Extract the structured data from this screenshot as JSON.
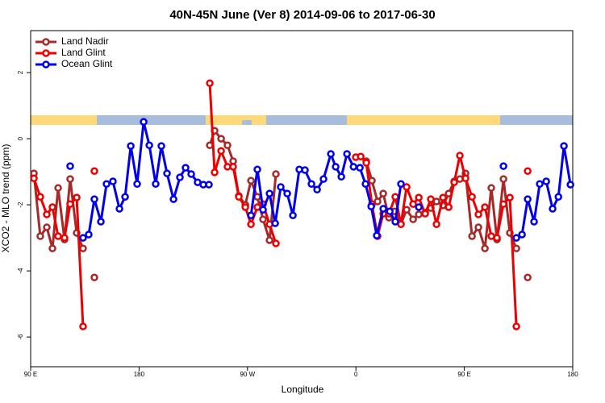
{
  "chart_data": {
    "type": "line",
    "title": "40N-45N June (Ver 8)   2014-09-06 to 2017-06-30",
    "x_label": "Longitude",
    "y_label": "XCO2 - MLO trend (ppm)",
    "xlim": [
      90,
      540
    ],
    "ylim": [
      -6.9,
      3.27
    ],
    "xticks": [
      {
        "value": 90,
        "label": "90 E"
      },
      180,
      {
        "value": 270,
        "label": "90 W"
      },
      {
        "value": 360,
        "label": "0"
      },
      {
        "value": 450,
        "label": "90 E"
      },
      {
        "value": 540,
        "label": "180"
      }
    ],
    "yticks": [
      -6,
      -4,
      -2,
      0,
      2
    ],
    "legend": "top-left",
    "series": [
      {
        "name": "Land Nadir",
        "color": "#a52a2a",
        "x": [
          92.7,
          98.0,
          103.4,
          108.1,
          112.8,
          118.1,
          122.8,
          128.2,
          133.5,
          null,
          142.9,
          null,
          238.7,
          242.7,
          248.1,
          253.4,
          258.1,
          262.8,
          268.2,
          272.9,
          278.2,
          282.9,
          288.3,
          293.6,
          null,
          368.6,
          373.3,
          378.0,
          382.7,
          387.4,
          392.1,
          397.4,
          402.1,
          407.5,
          412.2,
          417.5,
          422.2,
          426.9,
          432.3,
          437.0,
          441.6,
          446.3,
          451.0,
          456.4,
          461.7,
          467.1,
          472.4,
          477.1,
          482.5,
          487.8,
          493.2,
          null,
          502.6
        ],
        "values": [
          -1.05,
          -2.95,
          -2.68,
          -3.32,
          -1.49,
          -3.05,
          -1.22,
          -2.85,
          -3.32,
          null,
          -4.2,
          null,
          -0.2,
          0.24,
          0.0,
          -0.2,
          -0.68,
          -1.73,
          -2.0,
          -1.27,
          -1.76,
          -2.44,
          -3.07,
          -1.07,
          null,
          -0.68,
          -1.27,
          -1.9,
          -1.66,
          -2.39,
          -2.2,
          -2.58,
          -2.15,
          -2.44,
          -2.29,
          -2.24,
          -2.1,
          -1.9,
          -2.02,
          -1.66,
          -1.29,
          -1.22,
          -1.05,
          -2.95,
          -2.68,
          -3.32,
          -1.49,
          -3.05,
          -1.22,
          -2.85,
          -3.32,
          null,
          -4.2
        ]
      },
      {
        "name": "Land Glint",
        "color": "#ee0000",
        "x": [
          92.7,
          98.0,
          103.4,
          108.1,
          112.8,
          118.1,
          122.8,
          128.2,
          133.5,
          null,
          142.9,
          null,
          238.7,
          242.7,
          248.1,
          253.4,
          258.1,
          262.8,
          268.2,
          272.9,
          278.2,
          282.9,
          288.3,
          293.6,
          null,
          359.9,
          364.0,
          368.6,
          373.3,
          378.0,
          382.7,
          387.4,
          392.7,
          397.4,
          402.1,
          407.5,
          412.2,
          417.5,
          422.2,
          426.9,
          432.3,
          437.0,
          441.6,
          446.3,
          451.0,
          456.4,
          461.7,
          467.1,
          472.4,
          477.1,
          482.5,
          487.8,
          493.2,
          null,
          502.6
        ],
        "values": [
          -1.2,
          -1.76,
          -2.29,
          -2.07,
          -2.95,
          -3.0,
          -1.98,
          -1.78,
          -5.68,
          null,
          -0.98,
          null,
          1.68,
          -1.02,
          -0.37,
          -0.85,
          -0.85,
          -1.76,
          -2.07,
          -2.59,
          -2.07,
          -1.98,
          -2.59,
          -3.17,
          null,
          -0.56,
          -0.54,
          -0.73,
          -1.98,
          -2.95,
          -2.27,
          -2.27,
          -1.76,
          -2.59,
          -1.46,
          -1.98,
          -1.78,
          -2.27,
          -1.83,
          -2.59,
          -1.78,
          -2.07,
          -1.32,
          -0.51,
          -1.2,
          -1.76,
          -2.29,
          -2.07,
          -2.95,
          -3.0,
          -1.98,
          -1.78,
          -5.68,
          null,
          -0.98
        ]
      },
      {
        "name": "Ocean Glint",
        "color": "#0000ee",
        "x": [
          122.8,
          null,
          133.5,
          138.2,
          142.9,
          148.3,
          153.0,
          158.3,
          163.7,
          168.4,
          173.1,
          178.4,
          183.8,
          188.5,
          193.8,
          198.5,
          203.2,
          208.6,
          213.9,
          218.6,
          223.3,
          228.6,
          233.3,
          238.0,
          null,
          272.9,
          278.2,
          282.9,
          288.3,
          293.0,
          297.6,
          303.0,
          307.7,
          313.0,
          317.7,
          323.1,
          327.8,
          333.1,
          339.2,
          343.2,
          347.9,
          352.6,
          358.0,
          363.3,
          368.0,
          372.7,
          377.3,
          382.7,
          388.1,
          392.7,
          397.4,
          null,
          412.2,
          null,
          482.5,
          null,
          493.2,
          497.9,
          502.6,
          507.9,
          512.6,
          518.0,
          523.3,
          528.1,
          532.7,
          538.1
        ],
        "values": [
          -0.83,
          null,
          -3.0,
          -2.9,
          -1.83,
          -2.51,
          -1.37,
          -1.29,
          -2.12,
          -1.76,
          -0.22,
          -1.37,
          0.51,
          -0.2,
          -1.37,
          -0.22,
          -1.05,
          -1.83,
          -1.17,
          -0.88,
          -1.07,
          -1.32,
          -1.39,
          -1.39,
          null,
          -2.32,
          -0.93,
          -2.15,
          -1.66,
          -2.56,
          -1.46,
          -1.66,
          -2.32,
          -0.93,
          -0.95,
          -1.37,
          -1.54,
          -1.22,
          -0.46,
          -0.85,
          -1.15,
          -0.46,
          -0.85,
          -0.88,
          -1.37,
          -2.05,
          -2.93,
          -2.12,
          -2.2,
          -2.51,
          -1.37,
          null,
          -2.07,
          null,
          -0.83,
          null,
          -3.0,
          -2.9,
          -1.83,
          -2.51,
          -1.37,
          -1.29,
          -2.12,
          -1.76,
          -0.22,
          -1.39
        ]
      }
    ]
  }
}
